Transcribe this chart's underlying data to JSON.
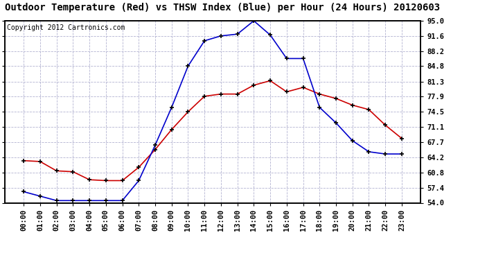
{
  "title": "Outdoor Temperature (Red) vs THSW Index (Blue) per Hour (24 Hours) 20120603",
  "copyright": "Copyright 2012 Cartronics.com",
  "hours": [
    "00:00",
    "01:00",
    "02:00",
    "03:00",
    "04:00",
    "05:00",
    "06:00",
    "07:00",
    "08:00",
    "09:00",
    "10:00",
    "11:00",
    "12:00",
    "13:00",
    "14:00",
    "15:00",
    "16:00",
    "17:00",
    "18:00",
    "19:00",
    "20:00",
    "21:00",
    "22:00",
    "23:00"
  ],
  "red_temp": [
    63.5,
    63.3,
    61.2,
    61.0,
    59.2,
    59.0,
    59.0,
    62.0,
    66.0,
    70.5,
    74.5,
    78.0,
    78.5,
    78.5,
    80.5,
    81.5,
    79.0,
    80.0,
    78.5,
    77.5,
    76.0,
    75.0,
    71.5,
    68.5
  ],
  "blue_thsw": [
    56.5,
    55.5,
    54.5,
    54.5,
    54.5,
    54.5,
    54.5,
    59.0,
    67.0,
    75.5,
    84.8,
    90.5,
    91.6,
    92.0,
    95.0,
    91.8,
    86.5,
    86.5,
    75.5,
    72.0,
    68.0,
    65.5,
    65.0,
    65.0
  ],
  "ylim": [
    54.0,
    95.0
  ],
  "yticks": [
    54.0,
    57.4,
    60.8,
    64.2,
    67.7,
    71.1,
    74.5,
    77.9,
    81.3,
    84.8,
    88.2,
    91.6,
    95.0
  ],
  "bg_color": "#ffffff",
  "grid_color": "#aaaacc",
  "red_color": "#cc0000",
  "blue_color": "#0000cc",
  "title_fontsize": 10,
  "copyright_fontsize": 7,
  "tick_fontsize": 7.5
}
